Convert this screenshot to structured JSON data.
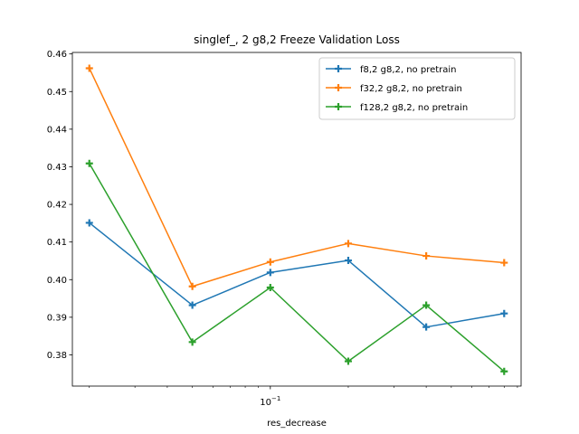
{
  "chart_data": {
    "type": "line",
    "title": "singlef_, 2 g8,2 Freeze Validation Loss",
    "xlabel": "res_decrease",
    "ylabel": "",
    "x_scale": "log",
    "x": [
      0.02,
      0.05,
      0.1,
      0.2,
      0.4,
      0.8
    ],
    "xlim": [
      0.0172,
      0.93
    ],
    "ylim": [
      0.3717,
      0.4604
    ],
    "x_tick_labels": [
      {
        "value": 0.1,
        "base": "10",
        "exponent": "−1"
      }
    ],
    "y_ticks": [
      0.38,
      0.39,
      0.4,
      0.41,
      0.42,
      0.43,
      0.44,
      0.45,
      0.46
    ],
    "y_tick_labels": [
      "0.38",
      "0.39",
      "0.40",
      "0.41",
      "0.42",
      "0.43",
      "0.44",
      "0.45",
      "0.46"
    ],
    "grid": false,
    "legend_position": "upper right",
    "marker": "plus",
    "series": [
      {
        "name": "f8,2 g8,2, no pretrain",
        "color": "#1f77b4",
        "values": [
          0.4151,
          0.3932,
          0.4019,
          0.4051,
          0.3874,
          0.391
        ]
      },
      {
        "name": "f32,2 g8,2, no pretrain",
        "color": "#ff7f0e",
        "values": [
          0.4562,
          0.3982,
          0.4047,
          0.4096,
          0.4063,
          0.4045
        ]
      },
      {
        "name": "f128,2 g8,2, no pretrain",
        "color": "#2ca02c",
        "values": [
          0.4309,
          0.3834,
          0.3979,
          0.3783,
          0.3932,
          0.3756
        ]
      }
    ]
  }
}
